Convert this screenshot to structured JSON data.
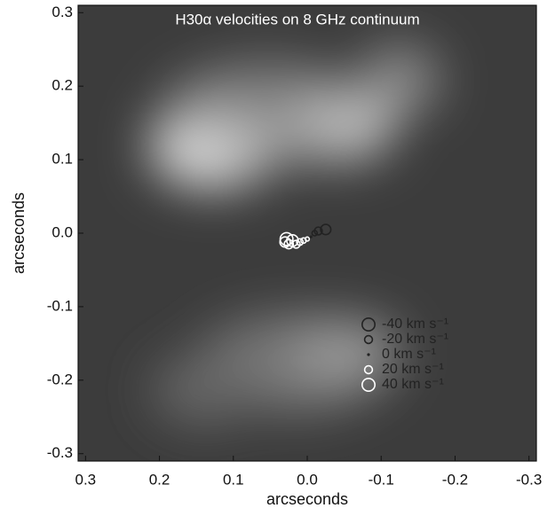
{
  "chart_data": {
    "type": "scatter",
    "title": "H30α velocities on 8 GHz continuum",
    "x_label": "arcseconds",
    "y_label": "arcseconds",
    "xlim": [
      0.31,
      -0.31
    ],
    "ylim": [
      -0.31,
      0.31
    ],
    "xticks": [
      0.3,
      0.2,
      0.1,
      {
        "value": 0,
        "label": "0.0"
      },
      -0.1,
      -0.2,
      -0.3
    ],
    "yticks": [
      0.3,
      0.2,
      0.1,
      {
        "value": 0,
        "label": "0.0"
      },
      -0.1,
      -0.2,
      -0.3
    ],
    "x": [
      0.03,
      0.025,
      0.02,
      0.015,
      0.01,
      0.028,
      0.005,
      -0.005,
      -0.01,
      -0.015,
      -0.025,
      0.0
    ],
    "y": [
      -0.012,
      -0.015,
      -0.01,
      -0.015,
      -0.012,
      -0.008,
      -0.01,
      -0.005,
      0.0,
      0.003,
      0.005,
      -0.008
    ],
    "values": [
      30,
      25,
      35,
      20,
      15,
      40,
      10,
      0,
      -10,
      -20,
      -30,
      5
    ],
    "negative_color": "#222222",
    "positive_color": "#ffffff",
    "legend": [
      {
        "value": -40,
        "label": "-40 km s⁻¹"
      },
      {
        "value": -20,
        "label": "-20 km s⁻¹"
      },
      {
        "value": 0,
        "label": "0 km s⁻¹"
      },
      {
        "value": 20,
        "label": "20 km s⁻¹"
      },
      {
        "value": 40,
        "label": "40 km s⁻¹"
      }
    ]
  }
}
